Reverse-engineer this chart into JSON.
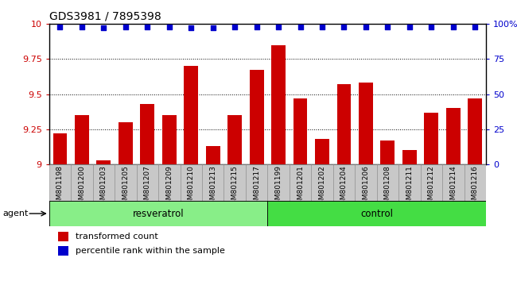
{
  "title": "GDS3981 / 7895398",
  "categories": [
    "GSM801198",
    "GSM801200",
    "GSM801203",
    "GSM801205",
    "GSM801207",
    "GSM801209",
    "GSM801210",
    "GSM801213",
    "GSM801215",
    "GSM801217",
    "GSM801199",
    "GSM801201",
    "GSM801202",
    "GSM801204",
    "GSM801206",
    "GSM801208",
    "GSM801211",
    "GSM801212",
    "GSM801214",
    "GSM801216"
  ],
  "bar_values": [
    9.22,
    9.35,
    9.03,
    9.3,
    9.43,
    9.35,
    9.7,
    9.13,
    9.35,
    9.67,
    9.85,
    9.47,
    9.18,
    9.57,
    9.58,
    9.17,
    9.1,
    9.37,
    9.4,
    9.47
  ],
  "percentile_values_pct": [
    98,
    98,
    97,
    98,
    98,
    98,
    97,
    97,
    98,
    98,
    98,
    98,
    98,
    98,
    98,
    98,
    98,
    98,
    98,
    98
  ],
  "bar_color": "#cc0000",
  "percentile_color": "#0000cc",
  "ylim_left": [
    9.0,
    10.0
  ],
  "ylim_right": [
    0,
    100
  ],
  "yticks_left": [
    9.0,
    9.25,
    9.5,
    9.75,
    10.0
  ],
  "yticks_left_labels": [
    "9",
    "9.25",
    "9.5",
    "9.75",
    "10"
  ],
  "yticks_right": [
    0,
    25,
    50,
    75,
    100
  ],
  "yticks_right_labels": [
    "0",
    "25",
    "50",
    "75",
    "100%"
  ],
  "group1_label": "resveratrol",
  "group2_label": "control",
  "group1_count": 10,
  "group2_count": 10,
  "agent_label": "agent",
  "legend_bar_label": "transformed count",
  "legend_pct_label": "percentile rank within the sample",
  "group1_color": "#88ee88",
  "group2_color": "#44dd44",
  "cell_color": "#c8c8c8",
  "bar_width": 0.65,
  "tick_label_fontsize": 6.5,
  "title_fontsize": 10,
  "axis_color_left": "#cc0000",
  "axis_color_right": "#0000cc"
}
